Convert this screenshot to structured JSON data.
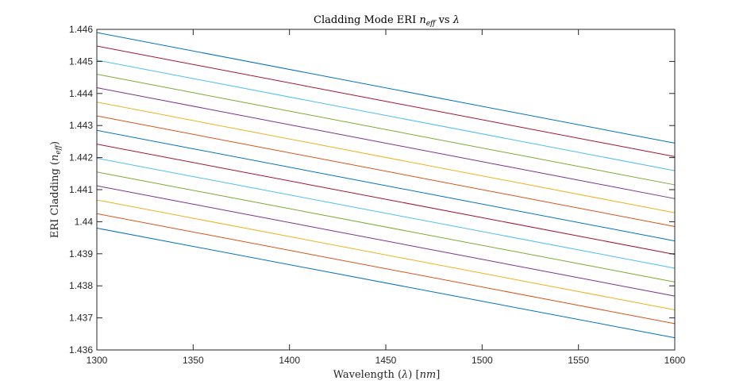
{
  "chart_data": {
    "type": "line",
    "title": "Cladding Mode ERI n_eff vs λ",
    "title_parts": {
      "prefix": "Cladding Mode ERI ",
      "sym": "n",
      "sub": "eff",
      "mid": " vs ",
      "lambda": "λ"
    },
    "xlabel": "Wavelength (λ) [nm]",
    "xlabel_parts": {
      "prefix": "Wavelength (",
      "lambda": "λ",
      "mid": ") [",
      "unit": "nm",
      "suffix": "]"
    },
    "ylabel": "ERI Cladding (n_eff)",
    "ylabel_parts": {
      "prefix": "ERI Cladding (",
      "sym": "n",
      "sub": "eff",
      "suffix": ")"
    },
    "xlim": [
      1300,
      1600
    ],
    "ylim": [
      1.436,
      1.446
    ],
    "xticks": [
      {
        "value": 1300,
        "label": "1300"
      },
      {
        "value": 1350,
        "label": "1350"
      },
      {
        "value": 1400,
        "label": "1400"
      },
      {
        "value": 1450,
        "label": "1450"
      },
      {
        "value": 1500,
        "label": "1500"
      },
      {
        "value": 1550,
        "label": "1550"
      },
      {
        "value": 1600,
        "label": "1600"
      }
    ],
    "yticks": [
      {
        "value": 1.436,
        "label": "1.436"
      },
      {
        "value": 1.437,
        "label": "1.437"
      },
      {
        "value": 1.438,
        "label": "1.438"
      },
      {
        "value": 1.439,
        "label": "1.439"
      },
      {
        "value": 1.44,
        "label": "1.44"
      },
      {
        "value": 1.441,
        "label": "1.441"
      },
      {
        "value": 1.442,
        "label": "1.442"
      },
      {
        "value": 1.443,
        "label": "1.443"
      },
      {
        "value": 1.444,
        "label": "1.444"
      },
      {
        "value": 1.445,
        "label": "1.445"
      },
      {
        "value": 1.446,
        "label": "1.446"
      }
    ],
    "grid": false,
    "x": [
      1300,
      1600
    ],
    "series": [
      {
        "color": "#0072BD",
        "values": [
          1.4459,
          1.44245
        ]
      },
      {
        "color": "#A2142F",
        "values": [
          1.44548,
          1.44203
        ]
      },
      {
        "color": "#4DBEEE",
        "values": [
          1.44504,
          1.44159
        ]
      },
      {
        "color": "#77AC30",
        "values": [
          1.4446,
          1.44115
        ]
      },
      {
        "color": "#7E2F8E",
        "values": [
          1.44418,
          1.44072
        ]
      },
      {
        "color": "#EDB120",
        "values": [
          1.44373,
          1.44028
        ]
      },
      {
        "color": "#D95319",
        "values": [
          1.4433,
          1.43985
        ]
      },
      {
        "color": "#0072BD",
        "values": [
          1.44285,
          1.4394
        ]
      },
      {
        "color": "#A2142F",
        "values": [
          1.44242,
          1.43898
        ]
      },
      {
        "color": "#4DBEEE",
        "values": [
          1.44198,
          1.43855
        ]
      },
      {
        "color": "#77AC30",
        "values": [
          1.44155,
          1.43812
        ]
      },
      {
        "color": "#7E2F8E",
        "values": [
          1.44112,
          1.43768
        ]
      },
      {
        "color": "#EDB120",
        "values": [
          1.44068,
          1.43725
        ]
      },
      {
        "color": "#D95319",
        "values": [
          1.44025,
          1.43682
        ]
      },
      {
        "color": "#0072BD",
        "values": [
          1.4398,
          1.43638
        ]
      }
    ]
  }
}
